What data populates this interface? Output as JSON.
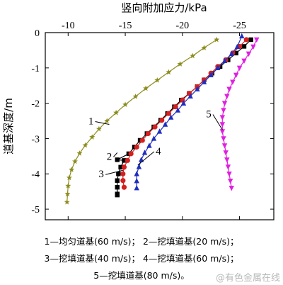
{
  "chart_data": {
    "type": "line",
    "title": "",
    "xlabel": "竖向附加应力/kPa",
    "ylabel": "道基深度/m",
    "xaxis_position": "top",
    "x_reversed": true,
    "xlim": [
      -8,
      -28
    ],
    "ylim": [
      -5.3,
      0
    ],
    "xticks": [
      -10,
      -15,
      -20,
      -25
    ],
    "yticks": [
      0,
      -1,
      -2,
      -3,
      -4,
      -5
    ],
    "xtick_labels": [
      "-10",
      "-15",
      "-20",
      "-25"
    ],
    "ytick_labels": [
      "0",
      "-1",
      "-2",
      "-3",
      "-4",
      "-5"
    ],
    "grid": false,
    "series": [
      {
        "name": "1",
        "color": "#8c8c1e",
        "marker": "star",
        "x": [
          -23.0,
          -21.9,
          -20.9,
          -19.8,
          -18.8,
          -17.8,
          -16.8,
          -15.9,
          -15.0,
          -14.2,
          -13.4,
          -12.7,
          -12.1,
          -11.5,
          -11.0,
          -10.6,
          -10.3,
          -10.1,
          -10.0,
          -9.95,
          -9.9
        ],
        "y": [
          -0.2,
          -0.43,
          -0.66,
          -0.89,
          -1.12,
          -1.35,
          -1.58,
          -1.81,
          -2.04,
          -2.27,
          -2.5,
          -2.73,
          -2.96,
          -3.19,
          -3.42,
          -3.65,
          -3.88,
          -4.11,
          -4.34,
          -4.57,
          -4.8
        ]
      },
      {
        "name": "2",
        "color": "#000000",
        "marker": "square",
        "x": [
          -26.0,
          -25.4,
          -24.7,
          -24.0,
          -23.3,
          -22.6,
          -21.9,
          -21.3,
          -20.6,
          -19.9,
          -19.3,
          -18.7,
          -18.1,
          -17.5,
          -16.9,
          -16.3,
          -15.8,
          -15.3,
          -14.9,
          -14.6,
          -14.4,
          -14.3,
          -14.3,
          -14.3,
          -14.3,
          -14.3
        ],
        "y": [
          -0.2,
          -0.39,
          -0.58,
          -0.77,
          -0.96,
          -1.15,
          -1.34,
          -1.53,
          -1.72,
          -1.91,
          -2.1,
          -2.29,
          -2.48,
          -2.67,
          -2.86,
          -3.05,
          -3.24,
          -3.43,
          -3.62,
          -3.81,
          -4.0,
          -4.19,
          -4.38,
          -4.57,
          -3.6,
          -4.6
        ]
      },
      {
        "name": "3",
        "color": "#d42020",
        "marker": "circle",
        "x": [
          -25.6,
          -25.0,
          -24.4,
          -23.8,
          -23.1,
          -22.5,
          -21.9,
          -21.3,
          -20.6,
          -20.0,
          -19.4,
          -18.8,
          -18.2,
          -17.6,
          -17.0,
          -16.5,
          -16.0,
          -15.5,
          -15.2,
          -14.9,
          -14.8,
          -14.8,
          -14.9
        ],
        "y": [
          -0.2,
          -0.39,
          -0.58,
          -0.77,
          -0.96,
          -1.15,
          -1.34,
          -1.53,
          -1.72,
          -1.91,
          -2.1,
          -2.29,
          -2.48,
          -2.67,
          -2.86,
          -3.05,
          -3.24,
          -3.43,
          -3.62,
          -3.81,
          -4.0,
          -4.19,
          -4.38
        ]
      },
      {
        "name": "4",
        "color": "#1f2fbf",
        "marker": "triangle-up",
        "x": [
          -25.2,
          -24.8,
          -24.3,
          -23.7,
          -23.1,
          -22.5,
          -21.9,
          -21.3,
          -20.7,
          -20.1,
          -19.6,
          -19.0,
          -18.5,
          -18.0,
          -17.5,
          -17.1,
          -16.7,
          -16.4,
          -16.2,
          -16.0,
          -16.0,
          -16.0
        ],
        "y": [
          -0.1,
          -0.4,
          -0.6,
          -0.8,
          -1.0,
          -1.2,
          -1.4,
          -1.6,
          -1.8,
          -2.0,
          -2.2,
          -2.4,
          -2.6,
          -2.8,
          -3.0,
          -3.2,
          -3.4,
          -3.6,
          -3.8,
          -4.0,
          -4.2,
          -4.4
        ]
      },
      {
        "name": "5",
        "color": "#e020e0",
        "marker": "triangle-down",
        "x": [
          -26.5,
          -26.2,
          -25.8,
          -25.4,
          -25.0,
          -24.7,
          -24.4,
          -24.1,
          -23.9,
          -23.7,
          -23.6,
          -23.5,
          -23.5,
          -23.5,
          -23.6,
          -23.7,
          -23.8,
          -23.9,
          -24.0,
          -24.1,
          -24.2,
          -24.3
        ],
        "y": [
          -0.2,
          -0.4,
          -0.6,
          -0.8,
          -1.0,
          -1.2,
          -1.4,
          -1.6,
          -1.8,
          -2.0,
          -2.2,
          -2.4,
          -2.6,
          -2.8,
          -3.0,
          -3.2,
          -3.4,
          -3.6,
          -3.8,
          -4.0,
          -4.2,
          -4.4
        ]
      }
    ],
    "annotations": [
      {
        "text": "1",
        "x": -12.0,
        "y": -2.6,
        "target_x": -13.6,
        "target_y": -2.6
      },
      {
        "text": "2",
        "x": -13.6,
        "y": -3.6,
        "target_x": -14.3,
        "target_y": -3.4
      },
      {
        "text": "3",
        "x": -12.9,
        "y": -4.1,
        "target_x": -14.8,
        "target_y": -3.9
      },
      {
        "text": "4",
        "x": -17.9,
        "y": -3.45,
        "target_x": -16.1,
        "target_y": -3.75
      },
      {
        "text": "5",
        "x": -22.3,
        "y": -2.4,
        "target_x": -23.5,
        "target_y": -2.75
      }
    ],
    "legend": {
      "placement": "bottom",
      "lines": [
        "1—均匀道基(60 m/s)；  2—挖填道基(20 m/s)；",
        "3—挖填道基(40 m/s)；  4—挖填道基(60 m/s)；",
        "5—挖填道基(80 m/s)。"
      ]
    }
  },
  "watermark": "@有色金属在线"
}
